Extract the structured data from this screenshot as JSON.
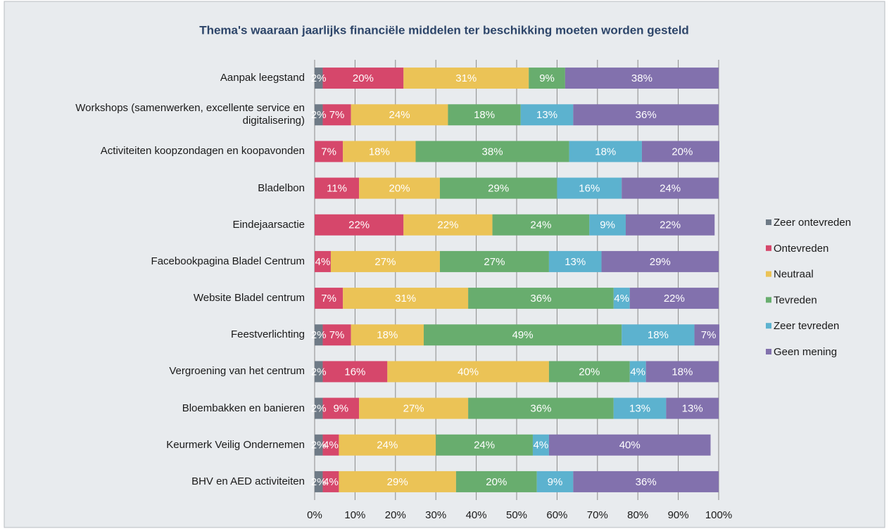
{
  "chart_data": {
    "type": "stacked_bar_horizontal",
    "title": "Thema's waaraan jaarlijks financiële middelen ter beschikking  moeten worden gesteld",
    "categories": [
      "Aanpak leegstand",
      "Workshops (samenwerken, excellente service en digitalisering)",
      "Activiteiten koopzondagen en koopavonden",
      "Bladelbon",
      "Eindejaarsactie",
      "Facebookpagina Bladel Centrum",
      "Website Bladel centrum",
      "Feestverlichting",
      "Vergroening van het centrum",
      "Bloembakken en banieren",
      "Keurmerk Veilig Ondernemen",
      "BHV en AED activiteiten"
    ],
    "series": [
      {
        "name": "Zeer ontevreden",
        "color": "#6e7a86",
        "values": [
          2,
          2,
          null,
          null,
          null,
          null,
          null,
          2,
          2,
          2,
          2,
          2
        ],
        "value_labels": [
          "2%",
          "2%",
          null,
          null,
          null,
          null,
          null,
          "2%",
          "2%",
          "2%",
          "2%",
          "2%"
        ]
      },
      {
        "name": "Ontevreden",
        "color": "#d6476b",
        "values": [
          20,
          7,
          7,
          11,
          22,
          4,
          7,
          7,
          16,
          9,
          4,
          4
        ],
        "value_labels": [
          "20%",
          "7%",
          "7%",
          "11%",
          "22%",
          "4%",
          "7%",
          "7%",
          "16%",
          "9%",
          "4%",
          "4%"
        ]
      },
      {
        "name": "Neutraal",
        "color": "#ebc356",
        "values": [
          31,
          24,
          18,
          20,
          22,
          27,
          31,
          18,
          40,
          27,
          24,
          29
        ],
        "value_labels": [
          "31%",
          "24%",
          "18%",
          "20%",
          "22%",
          "27%",
          "31%",
          "18%",
          "40%",
          "27%",
          "24%",
          "29%"
        ]
      },
      {
        "name": "Tevreden",
        "color": "#68ad6e",
        "values": [
          9,
          18,
          38,
          29,
          24,
          27,
          36,
          49,
          20,
          36,
          24,
          20
        ],
        "value_labels": [
          "9%",
          "18%",
          "38%",
          "29%",
          "24%",
          "27%",
          "36%",
          "49%",
          "20%",
          "36%",
          "24%",
          "20%"
        ]
      },
      {
        "name": "Zeer tevreden",
        "color": "#5cb2cf",
        "values": [
          null,
          13,
          18,
          16,
          9,
          13,
          4,
          18,
          4,
          13,
          4,
          9
        ],
        "value_labels": [
          null,
          "13%",
          "18%",
          "16%",
          "9%",
          "13%",
          "4%",
          "18%",
          "4%",
          "13%",
          "4%",
          "9%"
        ]
      },
      {
        "name": "Geen mening",
        "color": "#8271ad",
        "values": [
          38,
          36,
          20,
          24,
          22,
          29,
          22,
          7,
          18,
          13,
          40,
          36
        ],
        "value_labels": [
          "38%",
          "36%",
          "20%",
          "24%",
          "22%",
          "29%",
          "22%",
          "7%",
          "18%",
          "13%",
          "40%",
          "36%"
        ]
      }
    ],
    "xlim": [
      0,
      100
    ],
    "xticks": [
      {
        "value": 0,
        "label": "0%"
      },
      {
        "value": 10,
        "label": "10%"
      },
      {
        "value": 20,
        "label": "20%"
      },
      {
        "value": 30,
        "label": "30%"
      },
      {
        "value": 40,
        "label": "40%"
      },
      {
        "value": 50,
        "label": "50%"
      },
      {
        "value": 60,
        "label": "60%"
      },
      {
        "value": 70,
        "label": "70%"
      },
      {
        "value": 80,
        "label": "80%"
      },
      {
        "value": 90,
        "label": "90%"
      },
      {
        "value": 100,
        "label": "100%"
      }
    ],
    "grid": true,
    "legend": "right"
  }
}
